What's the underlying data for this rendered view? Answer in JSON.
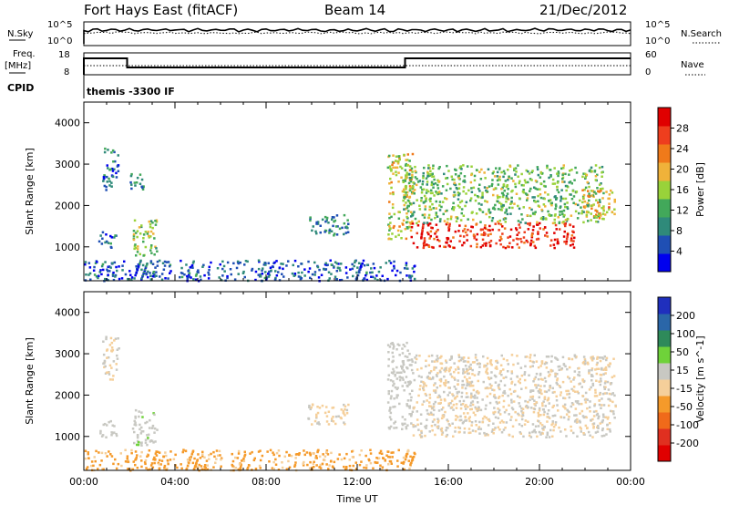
{
  "header": {
    "radar": "Fort Hays East (fitACF)",
    "beam": "Beam 14",
    "date": "21/Dec/2012"
  },
  "params": {
    "nsky_label": "N.Sky",
    "nsky_ticks": [
      "10^5",
      "10^0"
    ],
    "nsearch_label": "N.Search",
    "nsearch_ticks": [
      "10^5",
      "10^0"
    ],
    "freq_label_1": "Freq.",
    "freq_label_2": "[MHz]",
    "freq_ticks": [
      "18",
      "8"
    ],
    "nave_label": "Nave",
    "nave_ticks": [
      "60",
      "0"
    ],
    "cpid_label": "CPID",
    "cpid_value": "themis -3300 IF"
  },
  "colors": {
    "power": [
      "#0000ee",
      "#1f4fb4",
      "#2f8a7a",
      "#42a85a",
      "#99d23a",
      "#f0b23a",
      "#f07a1a",
      "#ee3e1e",
      "#e00000"
    ],
    "velocity": [
      "#1f2fbd",
      "#2a66a8",
      "#2e8a5a",
      "#6fd23a",
      "#c8c8c2",
      "#f5cf9a",
      "#f59a2a",
      "#f06a1a",
      "#e03020",
      "#e00000"
    ],
    "axes": "#000000"
  },
  "chart_data": [
    {
      "type": "heatmap",
      "title": "Power",
      "ylabel": "Slant Range [km]",
      "xlabel": "",
      "ylim": [
        180,
        4500
      ],
      "y_ticks": [
        "1000",
        "2000",
        "3000",
        "4000"
      ],
      "x_ticks": [],
      "colorbar": {
        "label": "Power [dB]",
        "ticks": [
          "4",
          "8",
          "12",
          "16",
          "20",
          "24",
          "28"
        ],
        "range": [
          0,
          32
        ]
      },
      "regions": [
        {
          "t": [
            0.8,
            1.5
          ],
          "r": [
            2400,
            3450
          ],
          "level": 8
        },
        {
          "t": [
            0.6,
            1.4
          ],
          "r": [
            1000,
            1400
          ],
          "level": 7
        },
        {
          "t": [
            2.1,
            3.2
          ],
          "r": [
            800,
            1700
          ],
          "level": 15
        },
        {
          "t": [
            2.0,
            2.6
          ],
          "r": [
            2400,
            2900
          ],
          "level": 10
        },
        {
          "t": [
            9.8,
            11.6
          ],
          "r": [
            1300,
            1800
          ],
          "level": 9
        },
        {
          "t": [
            13.3,
            14.4
          ],
          "r": [
            1200,
            3300
          ],
          "level": 18
        },
        {
          "t": [
            14.3,
            21.5
          ],
          "r": [
            1000,
            1600
          ],
          "level": 28
        },
        {
          "t": [
            14.0,
            22.8
          ],
          "r": [
            1600,
            3000
          ],
          "level": 14
        },
        {
          "t": [
            21.8,
            23.3
          ],
          "r": [
            1700,
            2400
          ],
          "level": 20
        },
        {
          "t": [
            0,
            14.5
          ],
          "r": [
            200,
            700
          ],
          "level": 6
        }
      ]
    },
    {
      "type": "heatmap",
      "title": "Velocity",
      "ylabel": "Slant Range [km]",
      "xlabel": "Time UT",
      "ylim": [
        180,
        4500
      ],
      "y_ticks": [
        "1000",
        "2000",
        "3000",
        "4000"
      ],
      "x_ticks": [
        "00:00",
        "04:00",
        "08:00",
        "12:00",
        "16:00",
        "20:00",
        "00:00"
      ],
      "x_range": [
        0,
        24
      ],
      "colorbar": {
        "label": "Velocity [m s^-1]",
        "ticks": [
          "200",
          "100",
          "50",
          "15",
          "-15",
          "-50",
          "-100",
          "-200"
        ],
        "range": [
          -250,
          250
        ]
      },
      "regions": [
        {
          "t": [
            0.8,
            1.5
          ],
          "r": [
            2400,
            3450
          ],
          "level": 0
        },
        {
          "t": [
            0.6,
            1.4
          ],
          "r": [
            1000,
            1400
          ],
          "level": 30
        },
        {
          "t": [
            2.1,
            3.2
          ],
          "r": [
            800,
            1700
          ],
          "level": 35
        },
        {
          "t": [
            9.8,
            11.6
          ],
          "r": [
            1300,
            1800
          ],
          "level": -5
        },
        {
          "t": [
            13.3,
            14.4
          ],
          "r": [
            1200,
            3300
          ],
          "level": 30
        },
        {
          "t": [
            14.3,
            23.3
          ],
          "r": [
            1000,
            3000
          ],
          "level": 0
        },
        {
          "t": [
            0,
            14.5
          ],
          "r": [
            200,
            700
          ],
          "level": -60
        }
      ]
    }
  ]
}
